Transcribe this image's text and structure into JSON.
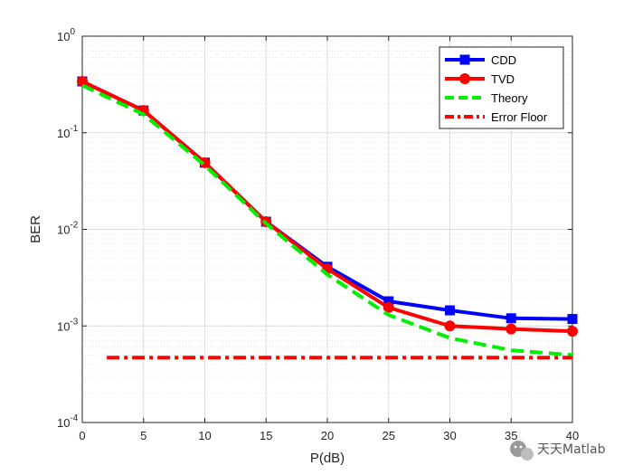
{
  "chart_data": {
    "type": "line",
    "xlabel": "P(dB)",
    "ylabel": "BER",
    "xlim": [
      0,
      40
    ],
    "ylim": [
      0.0001,
      1
    ],
    "yscale": "log",
    "xticks": [
      0,
      5,
      10,
      15,
      20,
      25,
      30,
      35,
      40
    ],
    "yticks": [
      {
        "value": 0.0001,
        "base": "10",
        "exp": "-4"
      },
      {
        "value": 0.001,
        "base": "10",
        "exp": "-3"
      },
      {
        "value": 0.01,
        "base": "10",
        "exp": "-2"
      },
      {
        "value": 0.1,
        "base": "10",
        "exp": "-1"
      },
      {
        "value": 1,
        "base": "10",
        "exp": "0"
      }
    ],
    "grid": true,
    "minor_grid": true,
    "legend_position": "top-right",
    "series": [
      {
        "name": "CDD",
        "color": "#0000ff",
        "style": "solid",
        "marker": "square",
        "x": [
          0,
          5,
          10,
          15,
          20,
          25,
          30,
          35,
          40
        ],
        "y": [
          0.34,
          0.17,
          0.049,
          0.012,
          0.0041,
          0.0018,
          0.00145,
          0.0012,
          0.00118
        ]
      },
      {
        "name": "TVD",
        "color": "#ff0000",
        "style": "solid",
        "marker": "circle",
        "x": [
          0,
          5,
          10,
          15,
          20,
          25,
          30,
          35,
          40
        ],
        "y": [
          0.34,
          0.17,
          0.049,
          0.012,
          0.0039,
          0.00155,
          0.001,
          0.00093,
          0.00088
        ]
      },
      {
        "name": "Theory",
        "color": "#00ee00",
        "style": "dashed",
        "marker": "none",
        "x": [
          0,
          5,
          10,
          15,
          20,
          25,
          30,
          35,
          40
        ],
        "y": [
          0.31,
          0.155,
          0.046,
          0.0115,
          0.0034,
          0.0013,
          0.00075,
          0.00056,
          0.0005
        ]
      },
      {
        "name": "Error Floor",
        "color": "#ff0000",
        "style": "dashdot",
        "marker": "none",
        "x": [
          2,
          40
        ],
        "y": [
          0.00047,
          0.00047
        ]
      }
    ]
  },
  "watermark": {
    "icon": "wechat-icon",
    "text": "天天Matlab"
  }
}
